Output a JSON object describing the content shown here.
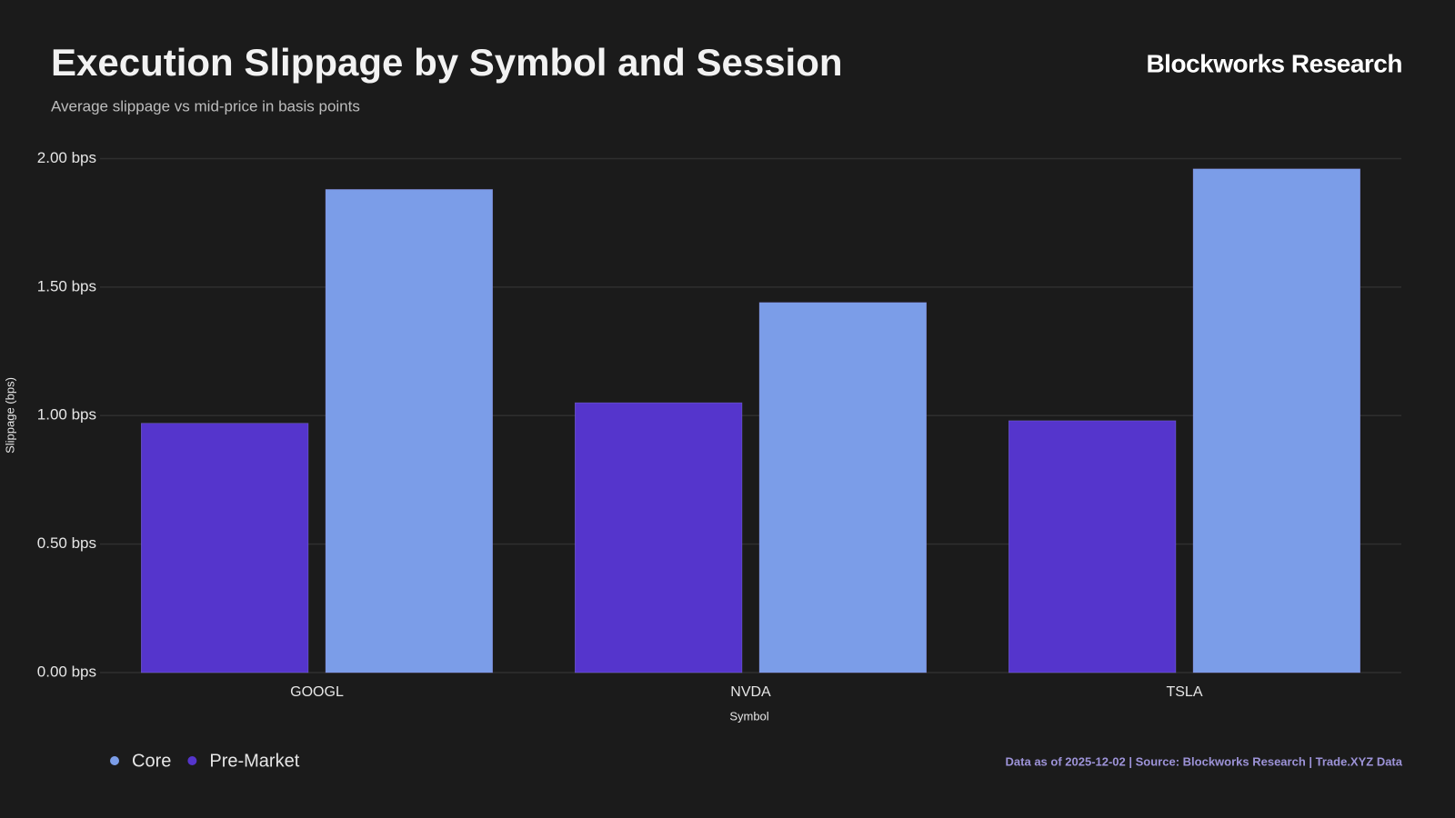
{
  "chart_data": {
    "type": "bar",
    "title": "Execution Slippage by Symbol and Session",
    "subtitle": "Average slippage vs mid-price in basis points",
    "brand": "Blockworks Research",
    "x_label": "Symbol",
    "y_label": "Slippage (bps)",
    "footer": "Data as of 2025-12-02 | Source: Blockworks Research | Trade.XYZ Data",
    "categories": [
      "GOOGL",
      "NVDA",
      "TSLA"
    ],
    "series": [
      {
        "name": "Core",
        "color": "#7b9de8",
        "values": [
          1.88,
          1.44,
          1.96
        ]
      },
      {
        "name": "Pre-Market",
        "color": "#5535cc",
        "values": [
          0.97,
          1.05,
          0.98
        ]
      }
    ],
    "ylim": [
      0,
      2
    ],
    "yticks": [
      {
        "value": 0,
        "label": "0.00 bps"
      },
      {
        "value": 0.5,
        "label": "0.50 bps"
      },
      {
        "value": 1,
        "label": "1.00 bps"
      },
      {
        "value": 1.5,
        "label": "1.50 bps"
      },
      {
        "value": 2,
        "label": "2.00 bps"
      }
    ],
    "grid": true,
    "legend": "bottom-left"
  }
}
